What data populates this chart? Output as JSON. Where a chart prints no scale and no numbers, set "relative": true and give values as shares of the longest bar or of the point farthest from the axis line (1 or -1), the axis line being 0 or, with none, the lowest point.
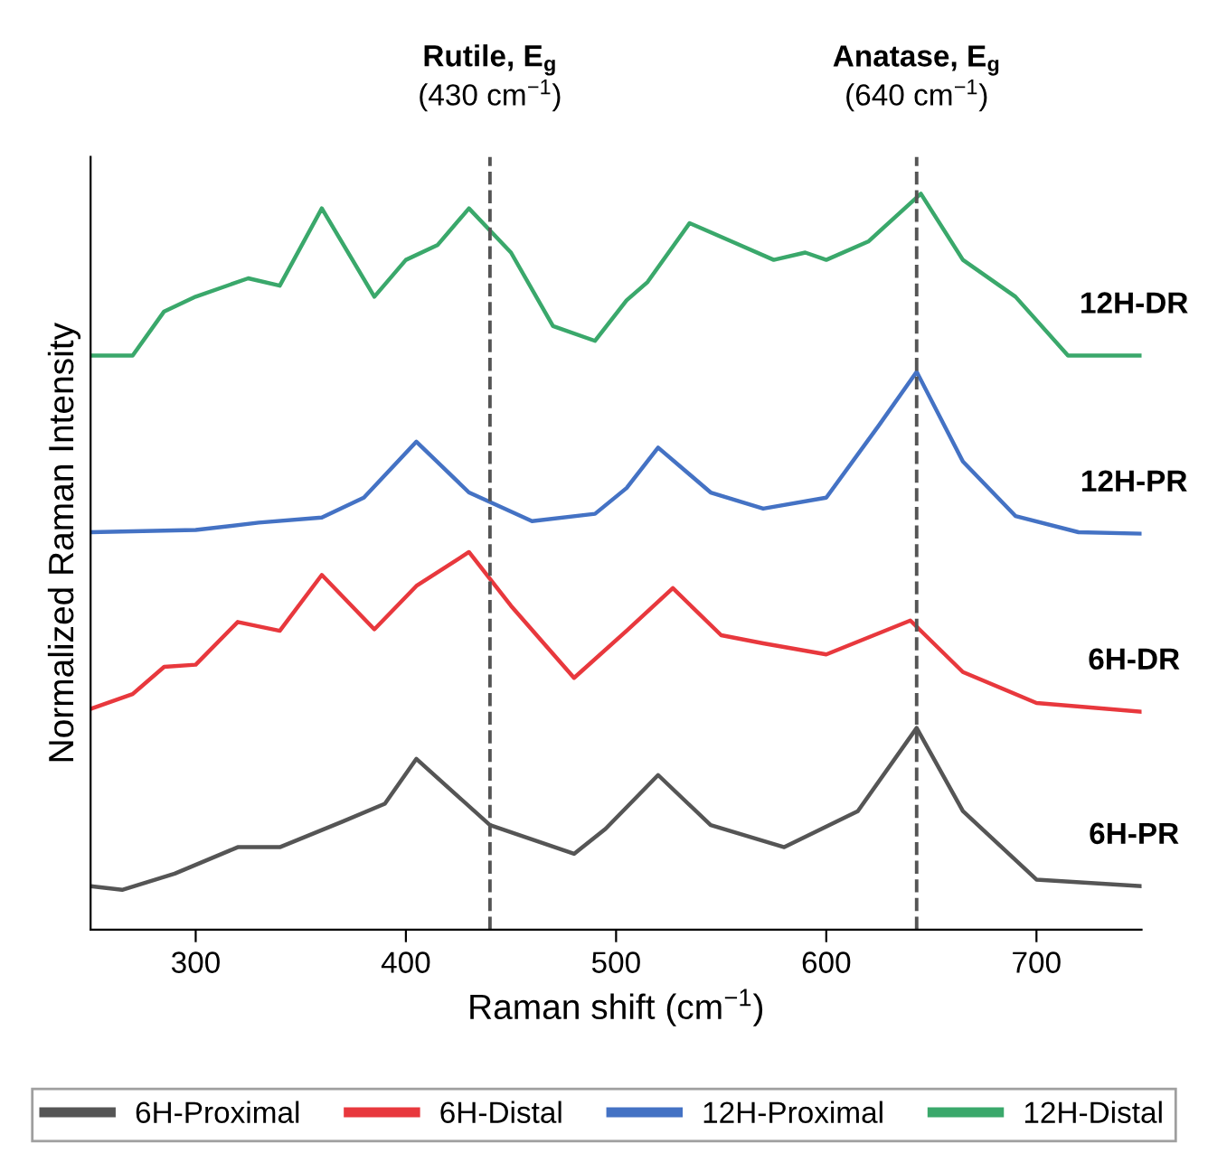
{
  "chart_data": {
    "type": "line",
    "relative": true,
    "xlabel": "Raman shift (cm$^{−1}$)",
    "ylabel": "Normalized Raman Intensity",
    "xlim": [
      250,
      750
    ],
    "xticks": [
      300,
      400,
      500,
      600,
      700
    ],
    "legend": "bottom",
    "grid": false,
    "line_style": "solid",
    "marker": "none",
    "ref_lines": [
      {
        "axis": "x",
        "value": 440,
        "label": "Rutile, E$_{g}$\n(430 cm$^{−1}$)",
        "color": "#555555",
        "line_style": "dashed"
      },
      {
        "axis": "x",
        "value": 643,
        "label": "Anatase, E$_{g}$\n(640 cm$^{−1}$)",
        "color": "#555555",
        "line_style": "dashed"
      }
    ],
    "annotations": [
      "12H-DR",
      "12H-PR",
      "6H-DR",
      "6H-PR"
    ],
    "series": [
      {
        "name": "6H-Proximal",
        "color": "#555555",
        "x": [
          250,
          265,
          290,
          320,
          340,
          370,
          390,
          405,
          440,
          480,
          495,
          520,
          545,
          580,
          615,
          643,
          665,
          700,
          750
        ],
        "values": [
          0.059,
          0.054,
          0.076,
          0.112,
          0.112,
          0.147,
          0.171,
          0.232,
          0.142,
          0.103,
          0.137,
          0.21,
          0.142,
          0.112,
          0.161,
          0.274,
          0.161,
          0.068,
          0.059
        ]
      },
      {
        "name": "6H-Distal",
        "color": "#e8383d",
        "x": [
          250,
          270,
          285,
          300,
          320,
          340,
          360,
          385,
          405,
          430,
          450,
          480,
          505,
          527,
          550,
          570,
          600,
          640,
          665,
          700,
          750
        ],
        "values": [
          0.3,
          0.32,
          0.357,
          0.36,
          0.418,
          0.406,
          0.482,
          0.408,
          0.467,
          0.513,
          0.44,
          0.342,
          0.406,
          0.464,
          0.4,
          0.389,
          0.374,
          0.42,
          0.35,
          0.308,
          0.296
        ]
      },
      {
        "name": "12H-Proximal",
        "color": "#4472c4",
        "x": [
          250,
          300,
          330,
          360,
          380,
          405,
          430,
          460,
          490,
          505,
          520,
          545,
          570,
          600,
          625,
          643,
          665,
          690,
          720,
          750
        ],
        "values": [
          0.54,
          0.543,
          0.553,
          0.56,
          0.587,
          0.663,
          0.594,
          0.555,
          0.565,
          0.6,
          0.655,
          0.594,
          0.572,
          0.587,
          0.685,
          0.758,
          0.636,
          0.562,
          0.54,
          0.538
        ]
      },
      {
        "name": "12H-Distal",
        "color": "#3aa86b",
        "x": [
          250,
          270,
          285,
          300,
          325,
          340,
          360,
          385,
          400,
          415,
          430,
          450,
          470,
          490,
          505,
          515,
          535,
          555,
          575,
          590,
          600,
          620,
          645,
          665,
          690,
          715,
          750
        ],
        "values": [
          0.78,
          0.78,
          0.84,
          0.86,
          0.885,
          0.875,
          0.98,
          0.86,
          0.91,
          0.93,
          0.98,
          0.92,
          0.82,
          0.8,
          0.855,
          0.88,
          0.96,
          0.935,
          0.91,
          0.92,
          0.91,
          0.935,
          1.0,
          0.91,
          0.86,
          0.78,
          0.78
        ]
      }
    ]
  }
}
